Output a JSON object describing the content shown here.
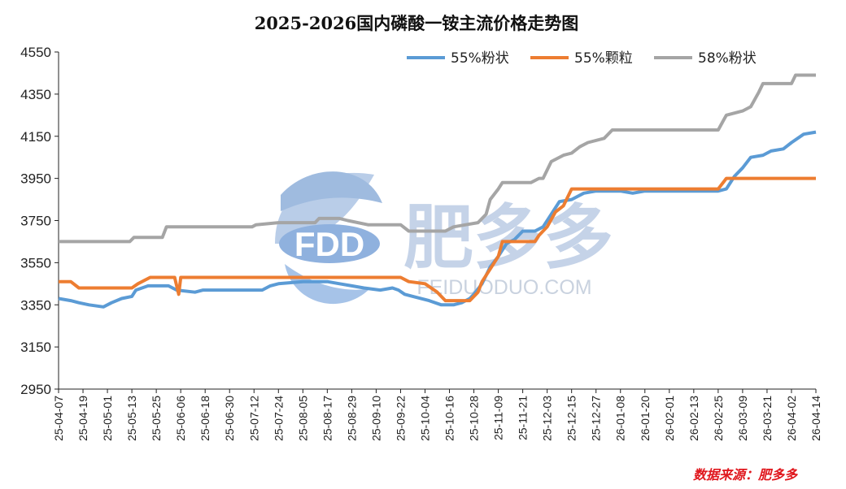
{
  "chart_data": {
    "type": "line",
    "title": "2025-2026国内磷酸一铵主流价格走势图",
    "xlabel": "",
    "ylabel": "",
    "ylim": [
      2950,
      4550
    ],
    "yticks": [
      2950,
      3150,
      3350,
      3550,
      3750,
      3950,
      4150,
      4350,
      4550
    ],
    "grid": false,
    "legend_position": "top-right",
    "categories": [
      "25-04-07",
      "25-04-19",
      "25-05-01",
      "25-05-13",
      "25-05-25",
      "25-06-06",
      "25-06-18",
      "25-06-30",
      "25-07-12",
      "25-07-24",
      "25-08-05",
      "25-08-17",
      "25-08-29",
      "25-09-10",
      "25-09-22",
      "25-10-04",
      "25-10-16",
      "25-10-28",
      "25-11-09",
      "25-11-21",
      "25-12-03",
      "25-12-15",
      "25-12-27",
      "26-01-08",
      "26-01-20",
      "26-02-01",
      "26-02-13",
      "26-02-25",
      "26-03-09",
      "26-03-21",
      "26-04-02",
      "26-04-14"
    ],
    "series": [
      {
        "name": "55%粉状",
        "color": "#5b9bd5",
        "points": [
          [
            "25-04-07",
            3380
          ],
          [
            "25-04-13",
            3370
          ],
          [
            "25-04-17",
            3360
          ],
          [
            "25-04-22",
            3350
          ],
          [
            "25-04-29",
            3340
          ],
          [
            "25-05-03",
            3360
          ],
          [
            "25-05-08",
            3380
          ],
          [
            "25-05-13",
            3390
          ],
          [
            "25-05-15",
            3420
          ],
          [
            "25-05-21",
            3440
          ],
          [
            "25-05-31",
            3440
          ],
          [
            "25-06-04",
            3420
          ],
          [
            "25-06-13",
            3410
          ],
          [
            "25-06-17",
            3420
          ],
          [
            "25-06-30",
            3420
          ],
          [
            "25-07-16",
            3420
          ],
          [
            "25-07-20",
            3440
          ],
          [
            "25-07-24",
            3450
          ],
          [
            "25-08-05",
            3460
          ],
          [
            "25-08-17",
            3460
          ],
          [
            "25-08-23",
            3450
          ],
          [
            "25-08-29",
            3440
          ],
          [
            "25-09-04",
            3430
          ],
          [
            "25-09-12",
            3420
          ],
          [
            "25-09-18",
            3430
          ],
          [
            "25-09-21",
            3420
          ],
          [
            "25-09-24",
            3400
          ],
          [
            "25-09-28",
            3390
          ],
          [
            "25-10-06",
            3370
          ],
          [
            "25-10-12",
            3350
          ],
          [
            "25-10-18",
            3350
          ],
          [
            "25-10-22",
            3360
          ],
          [
            "25-10-26",
            3380
          ],
          [
            "25-10-28",
            3400
          ],
          [
            "25-11-01",
            3450
          ],
          [
            "25-11-05",
            3530
          ],
          [
            "25-11-09",
            3580
          ],
          [
            "25-11-13",
            3640
          ],
          [
            "25-11-17",
            3660
          ],
          [
            "25-11-21",
            3700
          ],
          [
            "25-11-27",
            3700
          ],
          [
            "25-12-01",
            3720
          ],
          [
            "25-12-05",
            3780
          ],
          [
            "25-12-09",
            3840
          ],
          [
            "25-12-15",
            3850
          ],
          [
            "25-12-21",
            3880
          ],
          [
            "25-12-27",
            3890
          ],
          [
            "26-01-08",
            3890
          ],
          [
            "26-01-14",
            3880
          ],
          [
            "26-01-20",
            3890
          ],
          [
            "26-02-25",
            3890
          ],
          [
            "26-03-01",
            3900
          ],
          [
            "26-03-05",
            3960
          ],
          [
            "26-03-09",
            4000
          ],
          [
            "26-03-13",
            4050
          ],
          [
            "26-03-19",
            4060
          ],
          [
            "26-03-23",
            4080
          ],
          [
            "26-03-29",
            4090
          ],
          [
            "26-04-02",
            4120
          ],
          [
            "26-04-08",
            4160
          ],
          [
            "26-04-14",
            4170
          ]
        ]
      },
      {
        "name": "55%颗粒",
        "color": "#ed7d31",
        "points": [
          [
            "25-04-07",
            3460
          ],
          [
            "25-04-13",
            3460
          ],
          [
            "25-04-17",
            3430
          ],
          [
            "25-05-13",
            3430
          ],
          [
            "25-05-16",
            3450
          ],
          [
            "25-05-22",
            3480
          ],
          [
            "25-06-03",
            3480
          ],
          [
            "25-06-05",
            3400
          ],
          [
            "25-06-06",
            3480
          ],
          [
            "25-09-22",
            3480
          ],
          [
            "25-09-26",
            3460
          ],
          [
            "25-10-04",
            3450
          ],
          [
            "25-10-10",
            3410
          ],
          [
            "25-10-14",
            3370
          ],
          [
            "25-10-26",
            3370
          ],
          [
            "25-10-30",
            3410
          ],
          [
            "25-11-01",
            3460
          ],
          [
            "25-11-05",
            3520
          ],
          [
            "25-11-09",
            3580
          ],
          [
            "25-11-11",
            3650
          ],
          [
            "25-11-27",
            3650
          ],
          [
            "25-11-29",
            3680
          ],
          [
            "25-12-03",
            3720
          ],
          [
            "25-12-07",
            3790
          ],
          [
            "25-12-11",
            3820
          ],
          [
            "25-12-15",
            3900
          ],
          [
            "26-02-25",
            3900
          ],
          [
            "26-03-01",
            3950
          ],
          [
            "26-04-14",
            3950
          ]
        ]
      },
      {
        "name": "58%粉状",
        "color": "#a5a5a5",
        "points": [
          [
            "25-04-07",
            3650
          ],
          [
            "25-05-12",
            3650
          ],
          [
            "25-05-14",
            3670
          ],
          [
            "25-05-28",
            3670
          ],
          [
            "25-05-30",
            3720
          ],
          [
            "25-07-11",
            3720
          ],
          [
            "25-07-13",
            3730
          ],
          [
            "25-07-24",
            3740
          ],
          [
            "25-08-11",
            3740
          ],
          [
            "25-08-13",
            3760
          ],
          [
            "25-08-23",
            3760
          ],
          [
            "25-08-27",
            3750
          ],
          [
            "25-09-06",
            3730
          ],
          [
            "25-09-22",
            3730
          ],
          [
            "25-09-26",
            3700
          ],
          [
            "25-10-14",
            3700
          ],
          [
            "25-10-18",
            3720
          ],
          [
            "25-10-24",
            3730
          ],
          [
            "25-10-30",
            3740
          ],
          [
            "25-11-03",
            3780
          ],
          [
            "25-11-05",
            3850
          ],
          [
            "25-11-09",
            3900
          ],
          [
            "25-11-11",
            3930
          ],
          [
            "25-11-25",
            3930
          ],
          [
            "25-11-29",
            3950
          ],
          [
            "25-12-01",
            3950
          ],
          [
            "25-12-05",
            4030
          ],
          [
            "25-12-11",
            4060
          ],
          [
            "25-12-15",
            4070
          ],
          [
            "25-12-19",
            4100
          ],
          [
            "25-12-23",
            4120
          ],
          [
            "25-12-31",
            4140
          ],
          [
            "26-01-04",
            4180
          ],
          [
            "26-02-25",
            4180
          ],
          [
            "26-03-01",
            4250
          ],
          [
            "26-03-09",
            4270
          ],
          [
            "26-03-13",
            4290
          ],
          [
            "26-03-17",
            4360
          ],
          [
            "26-03-19",
            4400
          ],
          [
            "26-04-02",
            4400
          ],
          [
            "26-04-04",
            4440
          ],
          [
            "26-04-14",
            4440
          ]
        ]
      }
    ]
  },
  "watermark": {
    "logo": "FDD",
    "brand": "肥多多",
    "site": "FEIDUODUO.COM"
  },
  "source": "数据来源：肥多多"
}
